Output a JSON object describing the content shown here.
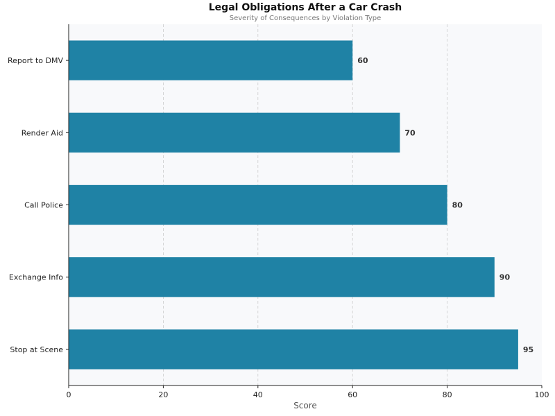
{
  "chart_data": {
    "type": "bar",
    "orientation": "horizontal",
    "title": "Legal Obligations After a Car Crash",
    "subtitle": "Severity of Consequences by Violation Type",
    "xlabel": "Score",
    "ylabel": "",
    "xlim": [
      0,
      100
    ],
    "xticks": [
      0,
      20,
      40,
      60,
      80,
      100
    ],
    "grid": "vertical dashed",
    "categories": [
      "Report to DMV",
      "Render Aid",
      "Call Police",
      "Exchange Info",
      "Stop at Scene"
    ],
    "values": [
      60,
      70,
      80,
      90,
      95
    ],
    "bar_color": "#1f82a5",
    "plot_background": "#f8f9fb"
  }
}
